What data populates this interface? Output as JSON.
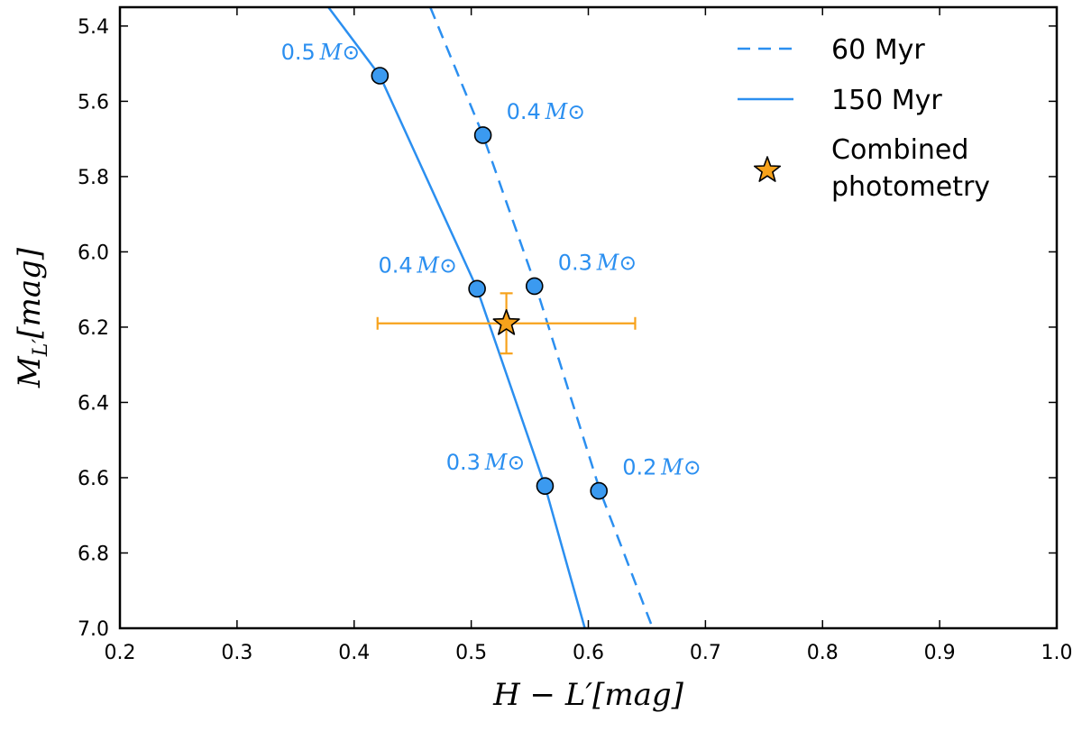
{
  "chart_data": {
    "type": "line",
    "title": "",
    "xlabel": "H − L′[mag]",
    "ylabel": "M_L′[mag]",
    "xlim": [
      0.2,
      1.0
    ],
    "ylim": [
      7.0,
      5.35
    ],
    "y_inverted": true,
    "grid": false,
    "x_ticks": [
      0.2,
      0.3,
      0.4,
      0.5,
      0.6,
      0.7,
      0.8,
      0.9,
      1.0
    ],
    "x_tick_labels": [
      "0.2",
      "0.3",
      "0.4",
      "0.5",
      "0.6",
      "0.7",
      "0.8",
      "0.9",
      "1.0"
    ],
    "y_ticks": [
      5.4,
      5.6,
      5.8,
      6.0,
      6.2,
      6.4,
      6.6,
      6.8,
      7.0
    ],
    "y_tick_labels": [
      "5.4",
      "5.6",
      "5.8",
      "6.0",
      "6.2",
      "6.4",
      "6.6",
      "6.8",
      "7.0"
    ],
    "colors": {
      "isochrone": "#2b8ff0",
      "marker_fill": "#3b9af0",
      "star": "#f7a21b",
      "errorbar": "#f7a21b"
    },
    "series": [
      {
        "name": "60 Myr",
        "style": "dashed",
        "x": [
          0.465,
          0.51,
          0.555,
          0.61,
          0.655
        ],
        "y": [
          5.35,
          5.69,
          6.09,
          6.635,
          7.0
        ]
      },
      {
        "name": "150 Myr",
        "style": "solid",
        "x": [
          0.378,
          0.422,
          0.505,
          0.563,
          0.597
        ],
        "y": [
          5.35,
          5.532,
          6.098,
          6.622,
          7.0
        ]
      }
    ],
    "mass_points": [
      {
        "series": "150 Myr",
        "x": 0.422,
        "y": 5.532,
        "label": "0.5",
        "unit": "M⊙",
        "label_side": "left"
      },
      {
        "series": "60 Myr",
        "x": 0.51,
        "y": 5.69,
        "label": "0.4",
        "unit": "M⊙",
        "label_side": "right"
      },
      {
        "series": "150 Myr",
        "x": 0.505,
        "y": 6.098,
        "label": "0.4",
        "unit": "M⊙",
        "label_side": "left"
      },
      {
        "series": "60 Myr",
        "x": 0.554,
        "y": 6.091,
        "label": "0.3",
        "unit": "M⊙",
        "label_side": "right"
      },
      {
        "series": "150 Myr",
        "x": 0.563,
        "y": 6.622,
        "label": "0.3",
        "unit": "M⊙",
        "label_side": "left"
      },
      {
        "series": "60 Myr",
        "x": 0.609,
        "y": 6.635,
        "label": "0.2",
        "unit": "M⊙",
        "label_side": "right"
      }
    ],
    "combined_photometry": {
      "name": "Combined photometry",
      "x": 0.53,
      "y": 6.19,
      "x_err": [
        0.11,
        0.11
      ],
      "y_err": [
        0.08,
        0.08
      ]
    },
    "legend": {
      "position": "top-right",
      "entries": [
        {
          "label": "60 Myr",
          "marker": "dashed-line"
        },
        {
          "label": "150 Myr",
          "marker": "solid-line"
        },
        {
          "label_lines": [
            "Combined",
            "photometry"
          ],
          "marker": "star"
        }
      ]
    }
  }
}
